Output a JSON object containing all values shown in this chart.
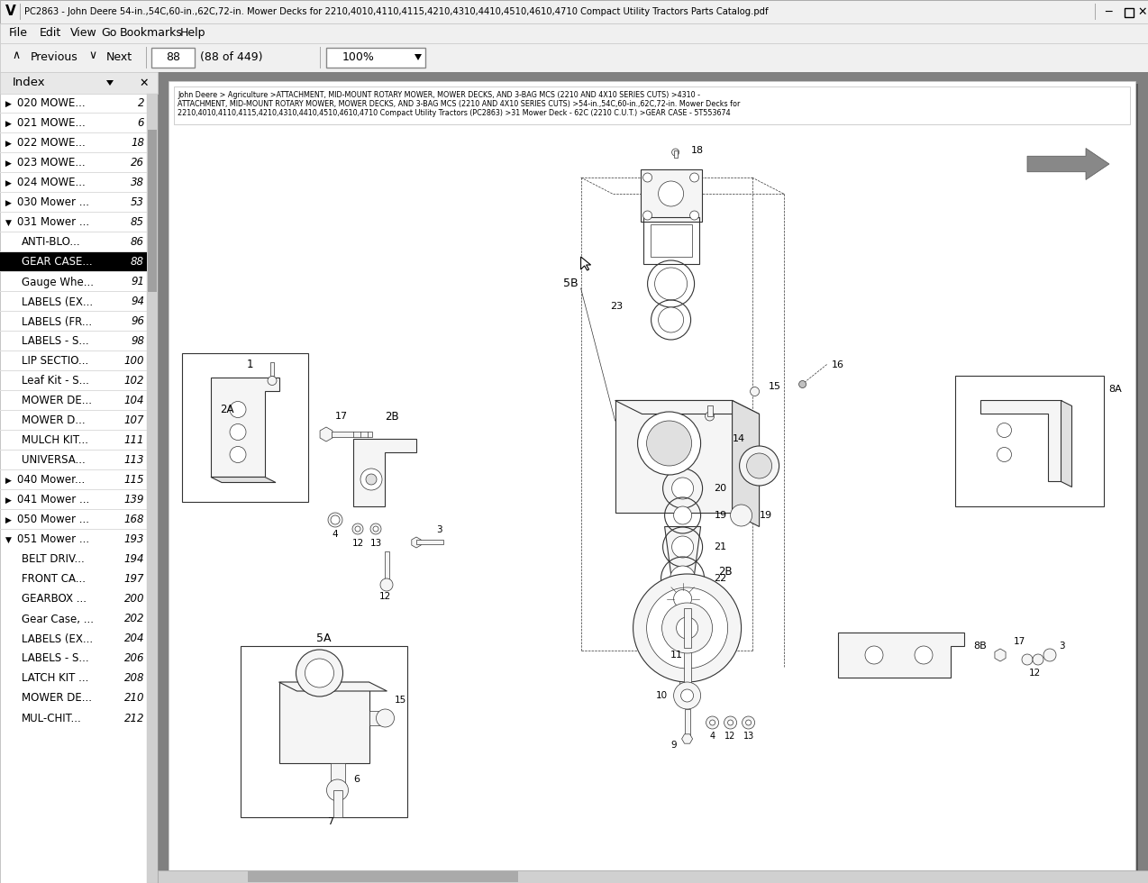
{
  "title_bar": "PC2863 - John Deere 54-in.,54C,60-in.,62C,72-in. Mower Decks for 2210,4010,4110,4115,4210,4310,4410,4510,4610,4710 Compact Utility Tractors Parts Catalog.pdf",
  "menu_items": [
    "File",
    "Edit",
    "View",
    "Go",
    "Bookmarks",
    "Help"
  ],
  "page_num": "88",
  "page_total": "(88 of 449)",
  "zoom_level": "100%",
  "breadcrumb_line1": "John Deere > Agriculture >ATTACHMENT, MID-MOUNT ROTARY MOWER, MOWER DECKS, AND 3-BAG MCS (2210 AND 4X10 SERIES CUTS) >4310 -",
  "breadcrumb_line2": "ATTACHMENT, MID-MOUNT ROTARY MOWER, MOWER DECKS, AND 3-BAG MCS (2210 AND 4X10 SERIES CUTS) >54-in.,54C,60-in.,62C,72-in. Mower Decks for",
  "breadcrumb_line3": "2210,4010,4110,4115,4210,4310,4410,4510,4610,4710 Compact Utility Tractors (PC2863) >31 Mower Deck - 62C (2210 C.U.T.) >GEAR CASE - 5T553674",
  "index_items": [
    {
      "label": "020 MOWE...",
      "page": "2",
      "level": 0,
      "expanded": false
    },
    {
      "label": "021 MOWE...",
      "page": "6",
      "level": 0,
      "expanded": false
    },
    {
      "label": "022 MOWE...",
      "page": "18",
      "level": 0,
      "expanded": false
    },
    {
      "label": "023 MOWE...",
      "page": "26",
      "level": 0,
      "expanded": false
    },
    {
      "label": "024 MOWE...",
      "page": "38",
      "level": 0,
      "expanded": false
    },
    {
      "label": "030 Mower ...",
      "page": "53",
      "level": 0,
      "expanded": false
    },
    {
      "label": "031 Mower ...",
      "page": "85",
      "level": 0,
      "expanded": true
    },
    {
      "label": "ANTI-BLO...",
      "page": "86",
      "level": 1,
      "selected": false
    },
    {
      "label": "GEAR CASE...",
      "page": "88",
      "level": 1,
      "selected": true
    },
    {
      "label": "Gauge Whe...",
      "page": "91",
      "level": 1,
      "selected": false
    },
    {
      "label": "LABELS (EX...",
      "page": "94",
      "level": 1,
      "selected": false
    },
    {
      "label": "LABELS (FR...",
      "page": "96",
      "level": 1,
      "selected": false
    },
    {
      "label": "LABELS - S...",
      "page": "98",
      "level": 1,
      "selected": false
    },
    {
      "label": "LIP SECTIO...",
      "page": "100",
      "level": 1,
      "selected": false
    },
    {
      "label": "Leaf Kit - S...",
      "page": "102",
      "level": 1,
      "selected": false
    },
    {
      "label": "MOWER DE...",
      "page": "104",
      "level": 1,
      "selected": false
    },
    {
      "label": "MOWER D...",
      "page": "107",
      "level": 1,
      "selected": false
    },
    {
      "label": "MULCH KIT...",
      "page": "111",
      "level": 1,
      "selected": false
    },
    {
      "label": "UNIVERSA...",
      "page": "113",
      "level": 1,
      "selected": false
    },
    {
      "label": "040 Mower...",
      "page": "115",
      "level": 0,
      "expanded": false
    },
    {
      "label": "041 Mower ...",
      "page": "139",
      "level": 0,
      "expanded": false
    },
    {
      "label": "050 Mower ...",
      "page": "168",
      "level": 0,
      "expanded": false
    },
    {
      "label": "051 Mower ...",
      "page": "193",
      "level": 0,
      "expanded": true
    },
    {
      "label": "BELT DRIV...",
      "page": "194",
      "level": 1,
      "selected": false
    },
    {
      "label": "FRONT CA...",
      "page": "197",
      "level": 1,
      "selected": false
    },
    {
      "label": "GEARBOX ...",
      "page": "200",
      "level": 1,
      "selected": false
    },
    {
      "label": "Gear Case, ...",
      "page": "202",
      "level": 1,
      "selected": false
    },
    {
      "label": "LABELS (EX...",
      "page": "204",
      "level": 1,
      "selected": false
    },
    {
      "label": "LABELS - S...",
      "page": "206",
      "level": 1,
      "selected": false
    },
    {
      "label": "LATCH KIT ...",
      "page": "208",
      "level": 1,
      "selected": false
    },
    {
      "label": "MOWER DE...",
      "page": "210",
      "level": 1,
      "selected": false
    },
    {
      "label": "MUL-CHIT...",
      "page": "212",
      "level": 1,
      "selected": false
    }
  ],
  "bg_color": "#c0c0c0",
  "sidebar_bg": "#ffffff",
  "titlebar_bg": "#f0f0f0",
  "menubar_bg": "#f0f0f0",
  "navbar_bg": "#f0f0f0",
  "selected_bg": "#000000",
  "selected_fg": "#ffffff",
  "content_bg": "#808080",
  "page_bg": "#ffffff",
  "scrollbar_bg": "#d0d0d0",
  "scrollbar_thumb": "#a0a0a0"
}
